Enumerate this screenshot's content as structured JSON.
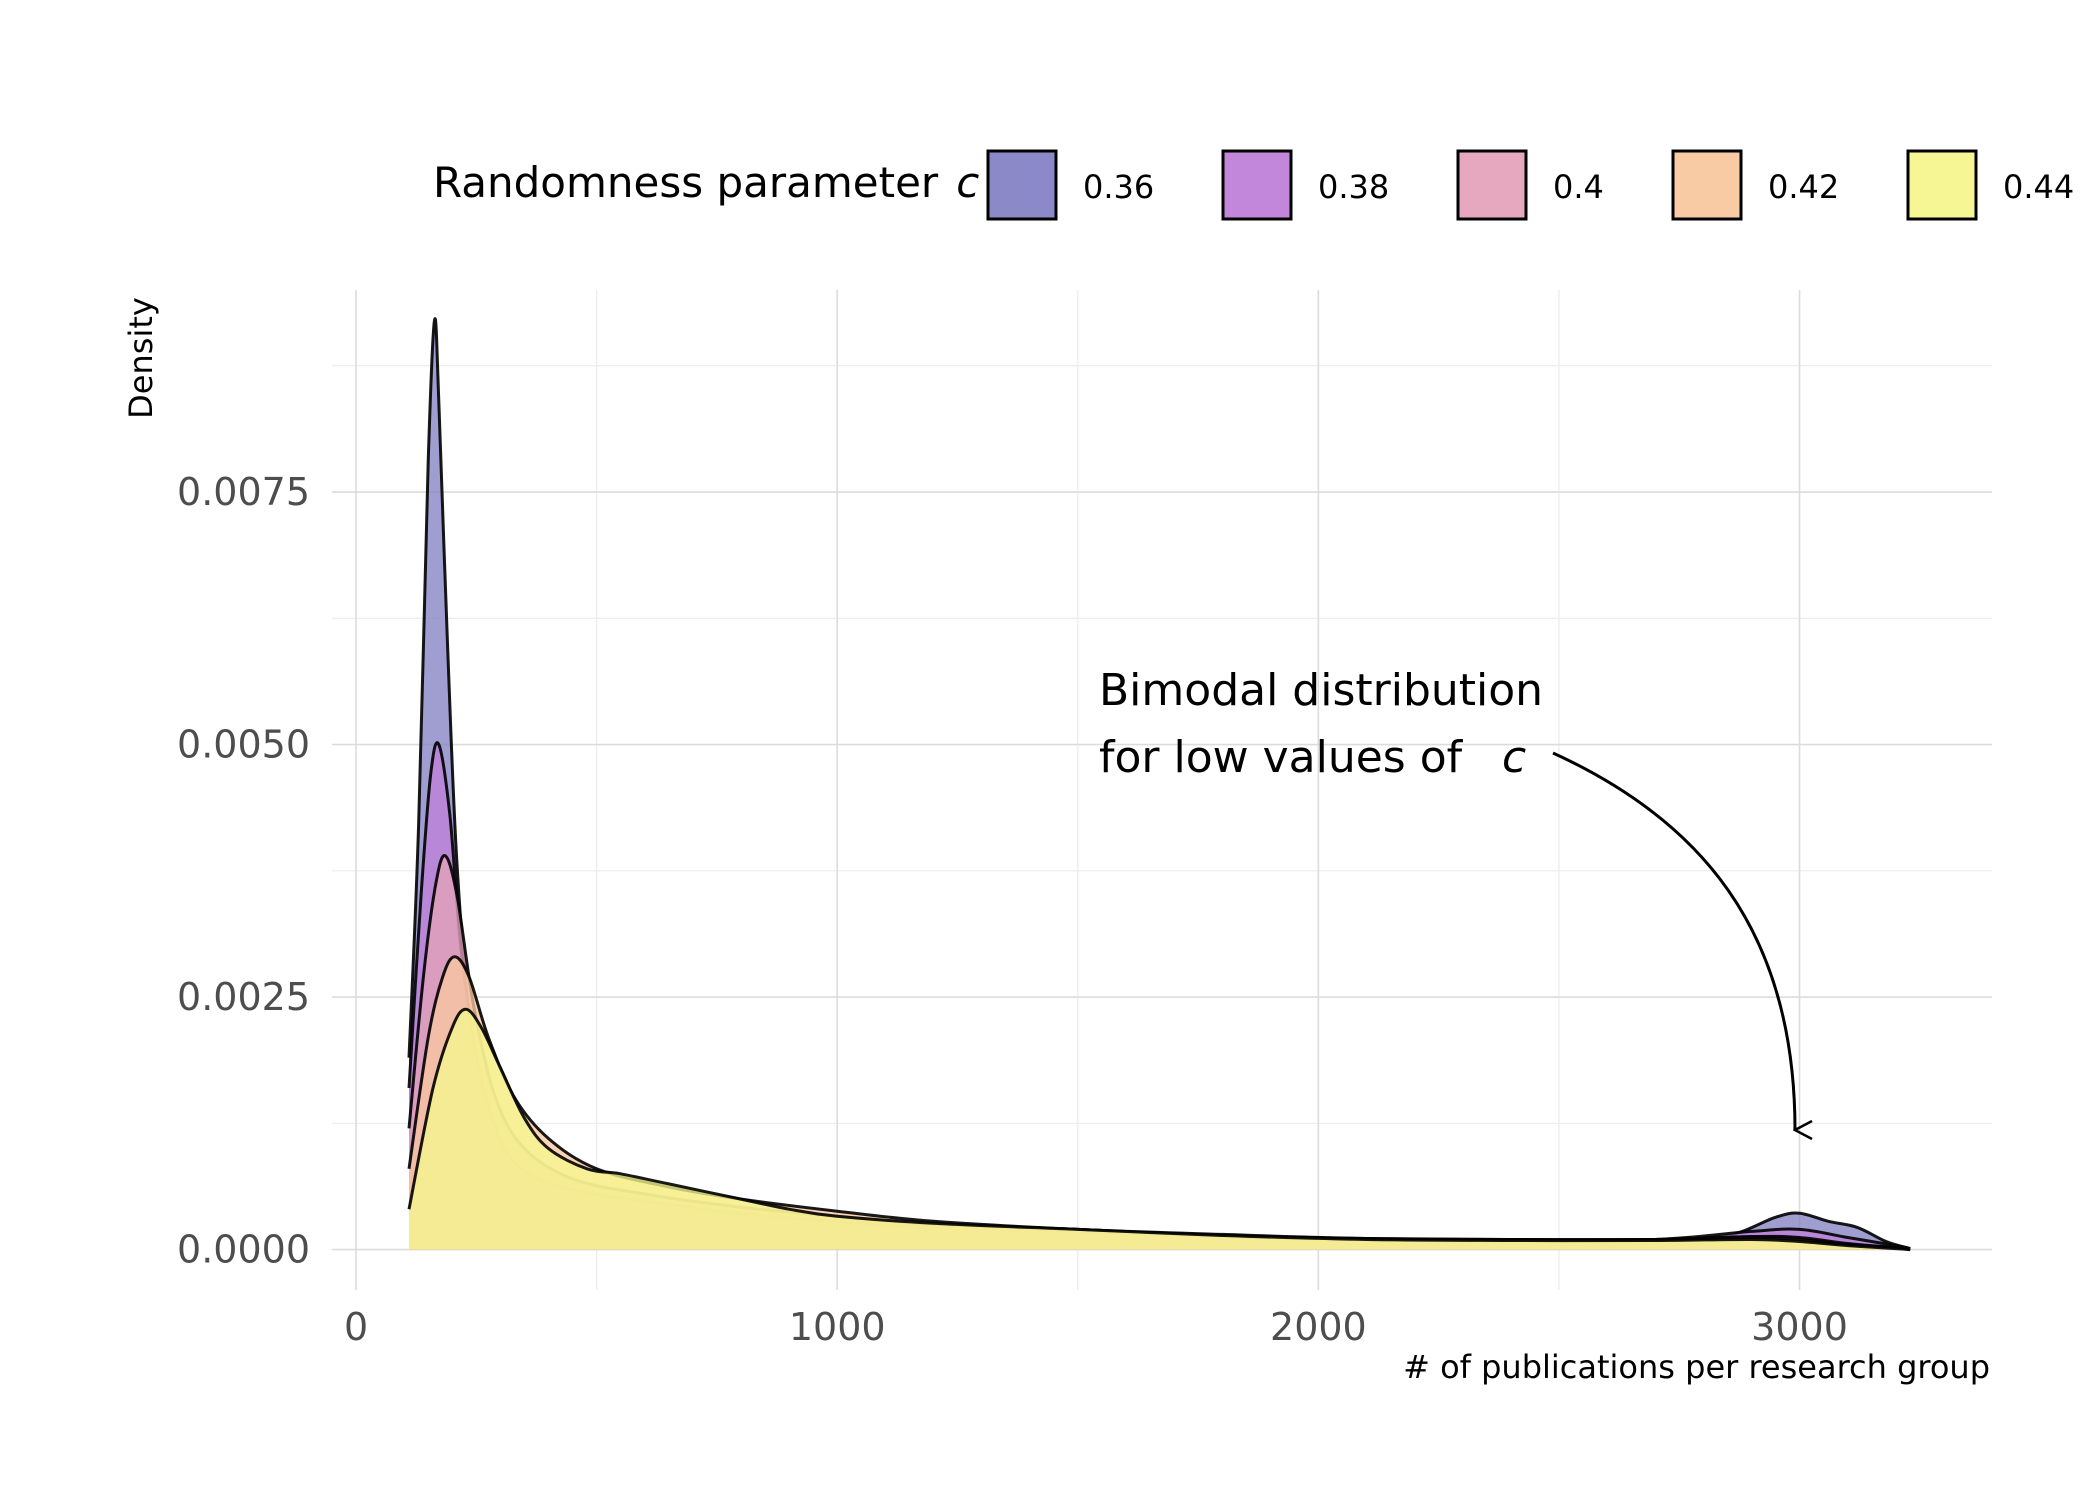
{
  "chart_data": {
    "type": "area",
    "xlabel": "# of publications per research group",
    "ylabel": "Density",
    "xlim": [
      -50,
      3400
    ],
    "ylim": [
      -0.0004,
      0.0095
    ],
    "x_ticks": [
      0,
      1000,
      2000,
      3000
    ],
    "x_tick_labels": [
      "0",
      "1000",
      "2000",
      "3000"
    ],
    "y_ticks": [
      0.0,
      0.0025,
      0.005,
      0.0075
    ],
    "y_tick_labels": [
      "0.0000",
      "0.0025",
      "0.0050",
      "0.0075"
    ],
    "grid": true,
    "legend": {
      "title": "Randomness parameter",
      "title_symbol": "c",
      "placement": "top"
    },
    "annotation": {
      "line1": "Bimodal distribution",
      "line2": "for low values of",
      "symbol": "c",
      "points_to": [
        3000,
        0.0002
      ]
    },
    "series": [
      {
        "name": "0.36",
        "color": "#8583C4",
        "points": [
          [
            110,
            0.0019
          ],
          [
            130,
            0.0042
          ],
          [
            150,
            0.0078
          ],
          [
            163,
            0.0092
          ],
          [
            172,
            0.0084
          ],
          [
            190,
            0.006
          ],
          [
            210,
            0.0038
          ],
          [
            240,
            0.0021
          ],
          [
            280,
            0.0012
          ],
          [
            330,
            0.0008
          ],
          [
            400,
            0.0006
          ],
          [
            500,
            0.0005
          ],
          [
            650,
            0.0004
          ],
          [
            800,
            0.00032
          ],
          [
            1000,
            0.00026
          ],
          [
            1200,
            0.0002
          ],
          [
            1500,
            0.00016
          ],
          [
            1800,
            0.00012
          ],
          [
            2100,
            0.0001
          ],
          [
            2400,
            9e-05
          ],
          [
            2700,
            0.0001
          ],
          [
            2850,
            0.00014
          ],
          [
            2950,
            0.00032
          ],
          [
            3000,
            0.00036
          ],
          [
            3060,
            0.00028
          ],
          [
            3120,
            0.00022
          ],
          [
            3180,
            8e-05
          ],
          [
            3230,
            1e-05
          ]
        ]
      },
      {
        "name": "0.38",
        "color": "#BF80D9",
        "points": [
          [
            110,
            0.0016
          ],
          [
            135,
            0.0035
          ],
          [
            155,
            0.0047
          ],
          [
            172,
            0.005
          ],
          [
            195,
            0.0043
          ],
          [
            220,
            0.0029
          ],
          [
            260,
            0.0017
          ],
          [
            310,
            0.001
          ],
          [
            380,
            0.0007
          ],
          [
            500,
            0.00055
          ],
          [
            650,
            0.00045
          ],
          [
            800,
            0.00036
          ],
          [
            1000,
            0.00028
          ],
          [
            1200,
            0.00022
          ],
          [
            1500,
            0.00018
          ],
          [
            1800,
            0.00013
          ],
          [
            2100,
            0.0001
          ],
          [
            2400,
            9e-05
          ],
          [
            2700,
            0.0001
          ],
          [
            2900,
            0.00018
          ],
          [
            3000,
            0.0002
          ],
          [
            3100,
            0.00012
          ],
          [
            3200,
            4e-05
          ],
          [
            3230,
            1e-05
          ]
        ]
      },
      {
        "name": "0.4",
        "color": "#E4A3BA",
        "points": [
          [
            110,
            0.0012
          ],
          [
            140,
            0.0027
          ],
          [
            165,
            0.0036
          ],
          [
            185,
            0.0039
          ],
          [
            210,
            0.0035
          ],
          [
            245,
            0.0024
          ],
          [
            290,
            0.0015
          ],
          [
            350,
            0.001
          ],
          [
            450,
            0.0007
          ],
          [
            600,
            0.00055
          ],
          [
            800,
            0.00042
          ],
          [
            1000,
            0.00033
          ],
          [
            1200,
            0.00025
          ],
          [
            1500,
            0.0002
          ],
          [
            1800,
            0.00014
          ],
          [
            2100,
            0.00011
          ],
          [
            2400,
            0.0001
          ],
          [
            2700,
            0.0001
          ],
          [
            2900,
            0.00013
          ],
          [
            3000,
            0.00012
          ],
          [
            3100,
            6e-05
          ],
          [
            3200,
            2e-05
          ],
          [
            3230,
            0.0
          ]
        ]
      },
      {
        "name": "0.42",
        "color": "#F8C8A0",
        "points": [
          [
            110,
            0.0008
          ],
          [
            150,
            0.0021
          ],
          [
            180,
            0.0027
          ],
          [
            205,
            0.0029
          ],
          [
            235,
            0.0027
          ],
          [
            275,
            0.0021
          ],
          [
            330,
            0.0015
          ],
          [
            400,
            0.0011
          ],
          [
            500,
            0.0008
          ],
          [
            650,
            0.00062
          ],
          [
            800,
            0.0005
          ],
          [
            1000,
            0.00038
          ],
          [
            1200,
            0.00028
          ],
          [
            1500,
            0.0002
          ],
          [
            1800,
            0.00015
          ],
          [
            2100,
            0.00011
          ],
          [
            2400,
            0.0001
          ],
          [
            2700,
            0.0001
          ],
          [
            2900,
            0.00012
          ],
          [
            3000,
            0.0001
          ],
          [
            3100,
            5e-05
          ],
          [
            3200,
            2e-05
          ],
          [
            3230,
            0.0
          ]
        ]
      },
      {
        "name": "0.44",
        "color": "#F6F78E",
        "points": [
          [
            110,
            0.0004
          ],
          [
            160,
            0.0016
          ],
          [
            200,
            0.0022
          ],
          [
            228,
            0.00238
          ],
          [
            260,
            0.0022
          ],
          [
            300,
            0.0018
          ],
          [
            350,
            0.0013
          ],
          [
            400,
            0.001
          ],
          [
            480,
            0.0008
          ],
          [
            550,
            0.00075
          ],
          [
            650,
            0.00065
          ],
          [
            780,
            0.00052
          ],
          [
            900,
            0.0004
          ],
          [
            1000,
            0.00033
          ],
          [
            1200,
            0.00026
          ],
          [
            1500,
            0.0002
          ],
          [
            1800,
            0.00014
          ],
          [
            2100,
            0.0001
          ],
          [
            2400,
            9e-05
          ],
          [
            2700,
            9e-05
          ],
          [
            2900,
            0.0001
          ],
          [
            3000,
            8e-05
          ],
          [
            3100,
            4e-05
          ],
          [
            3200,
            1e-05
          ],
          [
            3230,
            0.0
          ]
        ]
      }
    ]
  }
}
